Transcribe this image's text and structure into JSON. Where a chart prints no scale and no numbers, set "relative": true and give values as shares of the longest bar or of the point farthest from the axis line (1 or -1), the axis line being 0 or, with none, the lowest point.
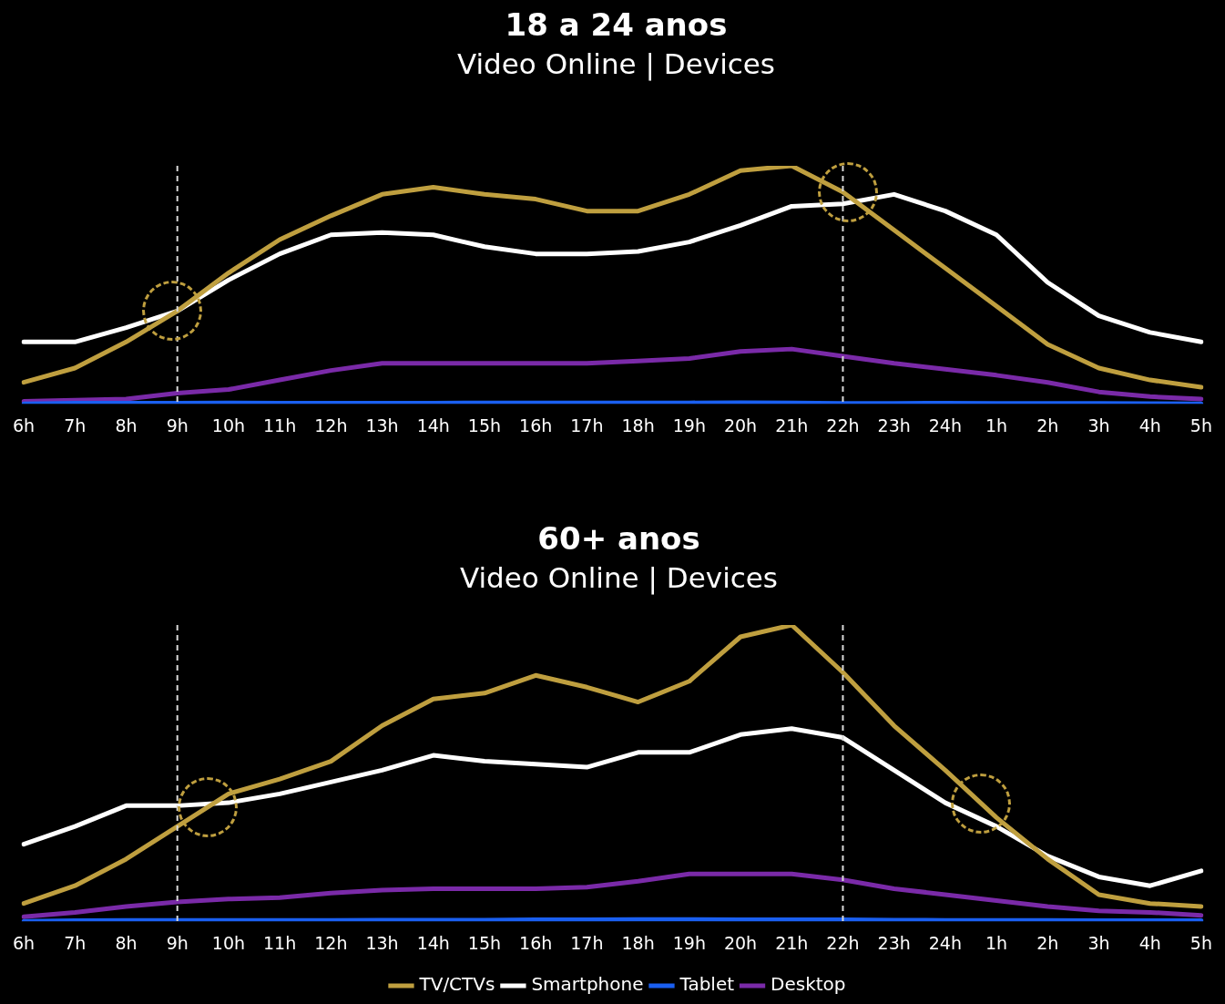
{
  "chart_data": [
    {
      "type": "line",
      "title": "18 a 24 anos",
      "subtitle": "Video Online | Devices",
      "relative": true,
      "marker": "none",
      "line_style": "solid",
      "categories": [
        "6h",
        "7h",
        "8h",
        "9h",
        "10h",
        "11h",
        "12h",
        "13h",
        "14h",
        "15h",
        "16h",
        "17h",
        "18h",
        "19h",
        "20h",
        "21h",
        "22h",
        "23h",
        "24h",
        "1h",
        "2h",
        "3h",
        "4h",
        "5h"
      ],
      "ref_lines": [
        {
          "axis": "x",
          "value": "9h",
          "color": "#d9d9d9",
          "line_style": "dashed"
        },
        {
          "axis": "x",
          "value": "22h",
          "color": "#d9d9d9",
          "line_style": "dashed"
        }
      ],
      "series": [
        {
          "color": "#bf9f3f",
          "values": [
            0.09,
            0.15,
            0.26,
            0.39,
            0.55,
            0.69,
            0.79,
            0.88,
            0.91,
            0.88,
            0.86,
            0.81,
            0.81,
            0.88,
            0.98,
            1.0,
            0.89,
            0.73,
            0.57,
            0.41,
            0.25,
            0.15,
            0.1,
            0.07
          ]
        },
        {
          "color": "#ffffff",
          "values": [
            0.26,
            0.26,
            0.32,
            0.39,
            0.52,
            0.63,
            0.71,
            0.72,
            0.71,
            0.66,
            0.63,
            0.63,
            0.64,
            0.68,
            0.75,
            0.83,
            0.84,
            0.88,
            0.81,
            0.71,
            0.51,
            0.37,
            0.3,
            0.26
          ]
        },
        {
          "color": "#1a5ff0",
          "values": [
            0,
            0.003,
            0.003,
            0.003,
            0.004,
            0.003,
            0.003,
            0.003,
            0.003,
            0.004,
            0.004,
            0.004,
            0.004,
            0.004,
            0.005,
            0.004,
            0.002,
            0.002,
            0.003,
            0.002,
            0.002,
            0.002,
            0.001,
            0
          ]
        },
        {
          "color": "#7a2aa8",
          "values": [
            0.01,
            0.015,
            0.02,
            0.045,
            0.06,
            0.1,
            0.14,
            0.17,
            0.17,
            0.17,
            0.17,
            0.17,
            0.18,
            0.19,
            0.22,
            0.23,
            0.2,
            0.17,
            0.145,
            0.12,
            0.09,
            0.05,
            0.03,
            0.02
          ]
        }
      ]
    },
    {
      "type": "line",
      "title": "60+ anos",
      "subtitle": "Video Online | Devices",
      "relative": true,
      "legend": "bottom",
      "marker": "none",
      "line_style": "solid",
      "categories": [
        "6h",
        "7h",
        "8h",
        "9h",
        "10h",
        "11h",
        "12h",
        "13h",
        "14h",
        "15h",
        "16h",
        "17h",
        "18h",
        "19h",
        "20h",
        "21h",
        "22h",
        "23h",
        "24h",
        "1h",
        "2h",
        "3h",
        "4h",
        "5h"
      ],
      "ref_lines": [
        {
          "axis": "x",
          "value": "9h",
          "color": "#d9d9d9",
          "line_style": "dashed"
        },
        {
          "axis": "x",
          "value": "22h",
          "color": "#d9d9d9",
          "line_style": "dashed"
        }
      ],
      "series": [
        {
          "name": "TV/CTVs",
          "color": "#bf9f3f",
          "values": [
            0.06,
            0.12,
            0.21,
            0.32,
            0.43,
            0.48,
            0.54,
            0.66,
            0.75,
            0.77,
            0.83,
            0.79,
            0.74,
            0.81,
            0.96,
            1.0,
            0.84,
            0.66,
            0.51,
            0.35,
            0.21,
            0.09,
            0.06,
            0.05
          ]
        },
        {
          "name": "Smartphone",
          "color": "#ffffff",
          "values": [
            0.26,
            0.32,
            0.39,
            0.39,
            0.4,
            0.43,
            0.47,
            0.51,
            0.56,
            0.54,
            0.53,
            0.52,
            0.57,
            0.57,
            0.63,
            0.65,
            0.62,
            0.51,
            0.4,
            0.32,
            0.22,
            0.15,
            0.12,
            0.17
          ]
        },
        {
          "name": "Tablet",
          "color": "#1a5ff0",
          "values": [
            0,
            0.002,
            0.003,
            0.003,
            0.003,
            0.003,
            0.003,
            0.004,
            0.004,
            0.004,
            0.005,
            0.005,
            0.006,
            0.006,
            0.005,
            0.005,
            0.005,
            0.004,
            0.003,
            0.003,
            0.003,
            0.002,
            0.002,
            0.002
          ]
        },
        {
          "name": "Desktop",
          "color": "#7a2aa8",
          "values": [
            0.015,
            0.03,
            0.05,
            0.065,
            0.075,
            0.08,
            0.095,
            0.105,
            0.11,
            0.11,
            0.11,
            0.115,
            0.135,
            0.16,
            0.16,
            0.16,
            0.14,
            0.11,
            0.09,
            0.07,
            0.05,
            0.035,
            0.03,
            0.02
          ]
        }
      ]
    }
  ]
}
